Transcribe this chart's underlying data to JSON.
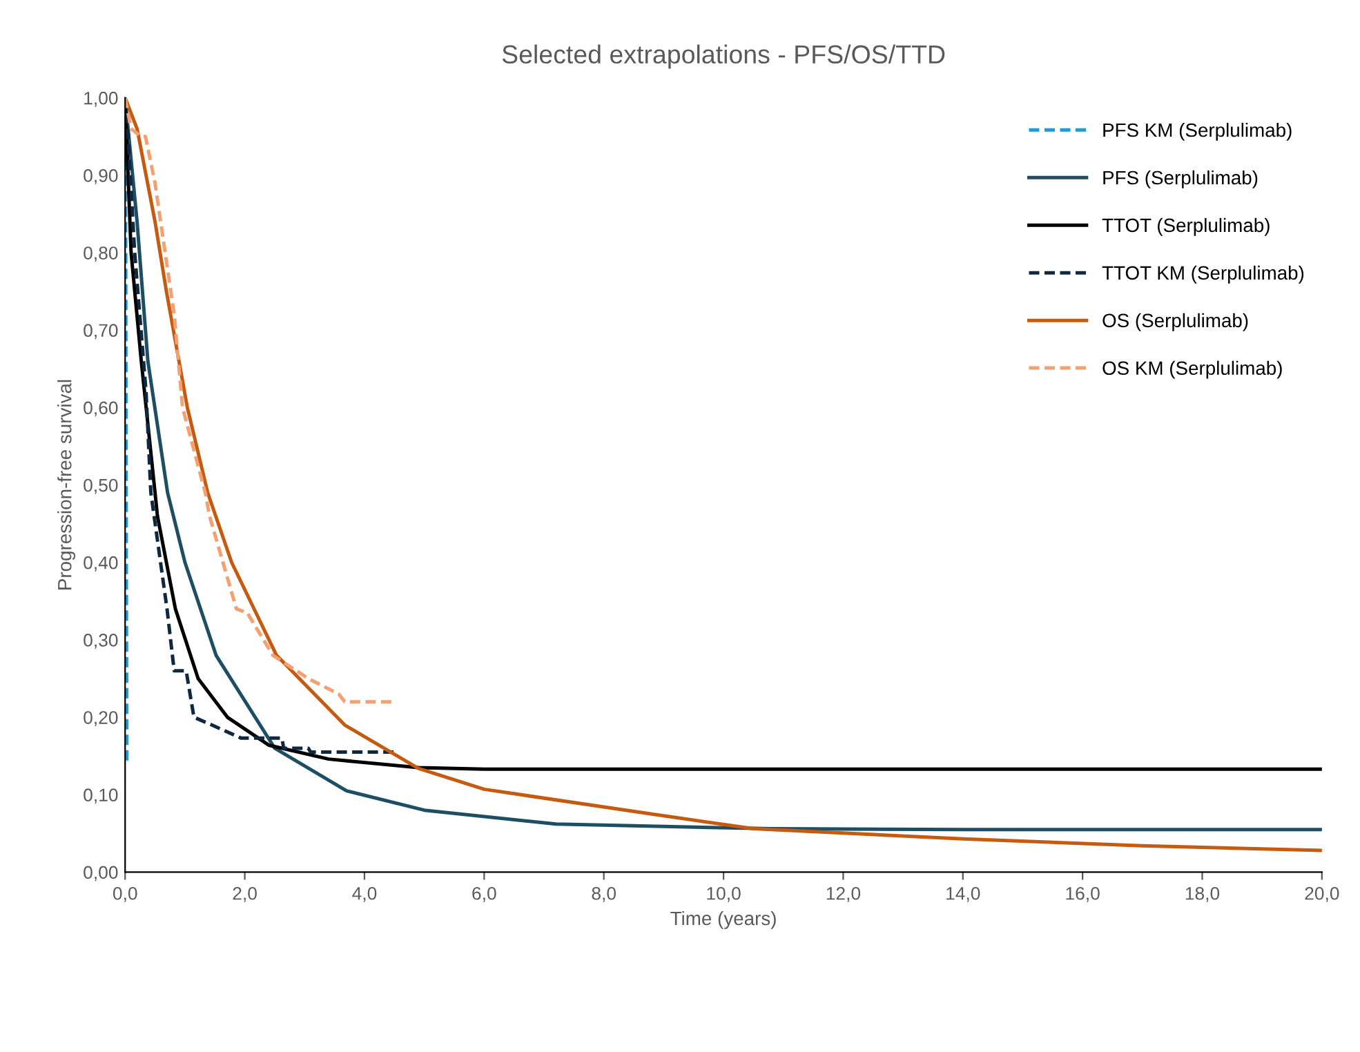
{
  "chart_data": {
    "type": "line",
    "title": "Selected extrapolations - PFS/OS/TTD",
    "xlabel": "Time (years)",
    "ylabel": "Progression-free survival",
    "xlim": [
      0,
      20
    ],
    "ylim": [
      0,
      1
    ],
    "xticks": [
      {
        "value": 0,
        "label": "0,0"
      },
      {
        "value": 2,
        "label": "2,0"
      },
      {
        "value": 4,
        "label": "4,0"
      },
      {
        "value": 6,
        "label": "6,0"
      },
      {
        "value": 8,
        "label": "8,0"
      },
      {
        "value": 10,
        "label": "10,0"
      },
      {
        "value": 12,
        "label": "12,0"
      },
      {
        "value": 14,
        "label": "14,0"
      },
      {
        "value": 16,
        "label": "16,0"
      },
      {
        "value": 18,
        "label": "18,0"
      },
      {
        "value": 20,
        "label": "20,0"
      }
    ],
    "yticks": [
      {
        "value": 0,
        "label": "0,00"
      },
      {
        "value": 0.1,
        "label": "0,10"
      },
      {
        "value": 0.2,
        "label": "0,20"
      },
      {
        "value": 0.3,
        "label": "0,30"
      },
      {
        "value": 0.4,
        "label": "0,40"
      },
      {
        "value": 0.5,
        "label": "0,50"
      },
      {
        "value": 0.6,
        "label": "0,60"
      },
      {
        "value": 0.7,
        "label": "0,70"
      },
      {
        "value": 0.8,
        "label": "0,80"
      },
      {
        "value": 0.9,
        "label": "0,90"
      },
      {
        "value": 1.0,
        "label": "1,00"
      }
    ],
    "grid": false,
    "legend": "top right",
    "series": [
      {
        "name": "PFS KM (Serplulimab)",
        "color": "#1f9bd6",
        "line_style": "dashed",
        "x": [
          0,
          0.01,
          0.02,
          0.03
        ],
        "values": [
          1.0,
          0.8,
          0.4,
          0.14
        ]
      },
      {
        "name": "PFS (Serplulimab)",
        "color": "#1d4e63",
        "line_style": "solid",
        "x": [
          0,
          0.2,
          0.38,
          0.71,
          1.0,
          1.52,
          2.5,
          3.7,
          5.0,
          7.2,
          10.8,
          14,
          20
        ],
        "values": [
          1.0,
          0.84,
          0.66,
          0.49,
          0.4,
          0.28,
          0.16,
          0.105,
          0.08,
          0.062,
          0.056,
          0.055,
          0.055
        ]
      },
      {
        "name": "TTOT (Serplulimab)",
        "color": "#000000",
        "line_style": "solid",
        "x": [
          0,
          0.1,
          0.27,
          0.5,
          0.54,
          0.84,
          1.22,
          1.71,
          2.4,
          3.4,
          4.9,
          6,
          20
        ],
        "values": [
          1.0,
          0.8,
          0.66,
          0.49,
          0.46,
          0.34,
          0.25,
          0.2,
          0.164,
          0.146,
          0.135,
          0.133,
          0.133
        ]
      },
      {
        "name": "TTOT KM (Serplulimab)",
        "color": "#0e2841",
        "line_style": "dashed",
        "x": [
          0,
          0.05,
          0.16,
          0.35,
          0.43,
          0.7,
          0.82,
          1.02,
          1.15,
          1.45,
          1.94,
          2.62,
          2.65,
          3.06,
          3.1,
          4.5
        ],
        "values": [
          1.0,
          0.95,
          0.8,
          0.62,
          0.49,
          0.34,
          0.26,
          0.26,
          0.2,
          0.19,
          0.173,
          0.173,
          0.16,
          0.16,
          0.155,
          0.155
        ]
      },
      {
        "name": "OS (Serplulimab)",
        "color": "#c55a11",
        "line_style": "solid",
        "x": [
          0,
          0.2,
          0.5,
          0.69,
          1.04,
          1.38,
          1.78,
          2.53,
          3.67,
          4.9,
          6.0,
          8.8,
          10.5,
          14,
          17,
          20
        ],
        "values": [
          1.0,
          0.96,
          0.84,
          0.75,
          0.6,
          0.49,
          0.4,
          0.28,
          0.19,
          0.134,
          0.107,
          0.075,
          0.056,
          0.043,
          0.034,
          0.028
        ]
      },
      {
        "name": "OS KM (Serplulimab)",
        "color": "#f4a070",
        "line_style": "dashed",
        "x": [
          0,
          0.1,
          0.27,
          0.34,
          0.5,
          0.82,
          0.96,
          1.34,
          1.41,
          1.86,
          2.04,
          2.47,
          3.06,
          3.57,
          3.67,
          4.5
        ],
        "values": [
          1.0,
          0.96,
          0.95,
          0.95,
          0.89,
          0.72,
          0.6,
          0.49,
          0.46,
          0.34,
          0.335,
          0.28,
          0.25,
          0.23,
          0.22,
          0.22
        ]
      }
    ]
  }
}
